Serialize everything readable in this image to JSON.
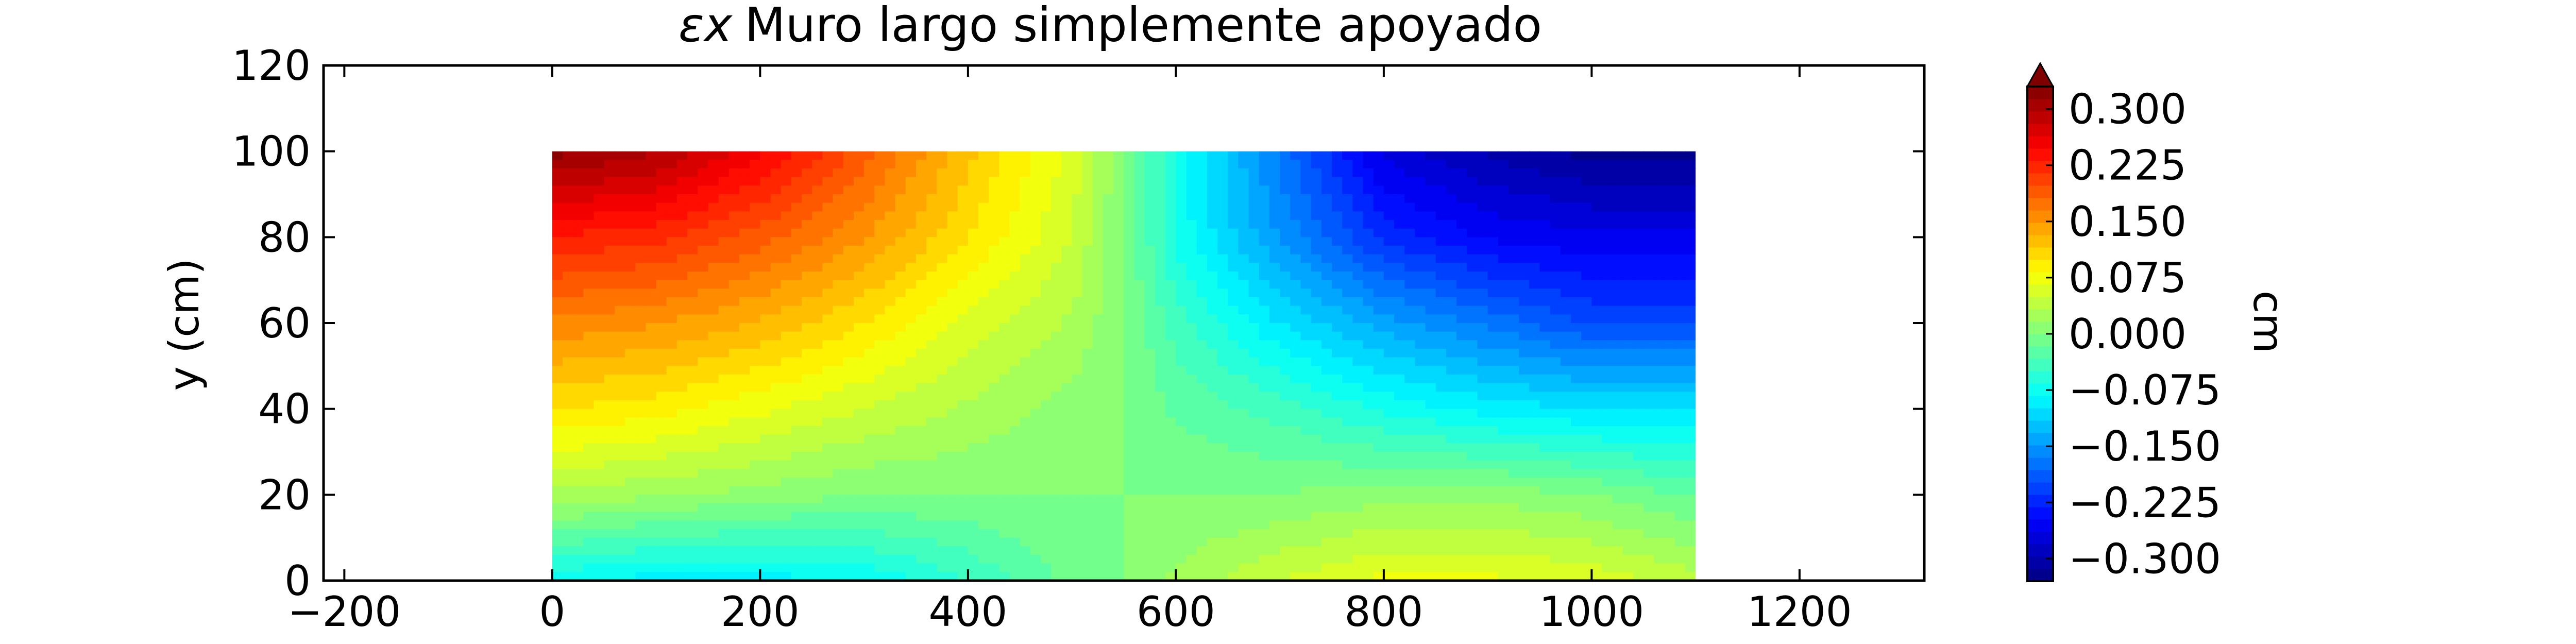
{
  "chart_data": {
    "type": "heatmap",
    "title_symbol": "εx",
    "title_text": "Muro largo simplemente apoyado",
    "xlabel": "",
    "ylabel": "y (cm)",
    "xlim": [
      -220,
      1320
    ],
    "ylim": [
      0,
      120
    ],
    "x_ticks": [
      "−200",
      "0",
      "200",
      "400",
      "600",
      "800",
      "1000",
      "1200"
    ],
    "x_tick_values": [
      -200,
      0,
      200,
      400,
      600,
      800,
      1000,
      1200
    ],
    "y_ticks": [
      "0",
      "20",
      "40",
      "60",
      "80",
      "100",
      "120"
    ],
    "y_tick_values": [
      0,
      20,
      40,
      60,
      80,
      100,
      120
    ],
    "colorbar": {
      "label": "cm",
      "range": [
        -0.33,
        0.33
      ],
      "ticks": [
        "0.300",
        "0.225",
        "0.150",
        "0.075",
        "0.000",
        "−0.075",
        "−0.150",
        "−0.225",
        "−0.300"
      ],
      "tick_values": [
        0.3,
        0.225,
        0.15,
        0.075,
        0.0,
        -0.075,
        -0.15,
        -0.225,
        -0.3
      ],
      "extend": "max",
      "colormap": "jet"
    },
    "domain": {
      "x": [
        0,
        1100
      ],
      "y": [
        0,
        100
      ]
    },
    "grid": false,
    "legend": "none",
    "field_samples": {
      "x": [
        0,
        100,
        200,
        300,
        400,
        500,
        550,
        600,
        700,
        800,
        900,
        1000,
        1100
      ],
      "y": [
        0,
        20,
        40,
        60,
        80,
        100
      ],
      "values": [
        [
          -0.08,
          -0.09,
          -0.09,
          -0.08,
          -0.05,
          -0.01,
          0.0,
          0.02,
          0.05,
          0.07,
          0.07,
          0.06,
          0.04
        ],
        [
          0.03,
          0.02,
          0.01,
          0.0,
          0.0,
          0.0,
          0.0,
          0.0,
          0.0,
          0.01,
          0.01,
          0.0,
          -0.02
        ],
        [
          0.1,
          0.09,
          0.07,
          0.05,
          0.03,
          0.01,
          0.0,
          -0.02,
          -0.04,
          -0.07,
          -0.09,
          -0.1,
          -0.1
        ],
        [
          0.16,
          0.15,
          0.13,
          0.1,
          0.06,
          0.03,
          0.0,
          -0.04,
          -0.1,
          -0.14,
          -0.17,
          -0.2,
          -0.2
        ],
        [
          0.23,
          0.22,
          0.19,
          0.15,
          0.1,
          0.05,
          0.0,
          -0.07,
          -0.15,
          -0.22,
          -0.25,
          -0.26,
          -0.26
        ],
        [
          0.32,
          0.3,
          0.25,
          0.19,
          0.12,
          0.06,
          0.0,
          -0.07,
          -0.17,
          -0.27,
          -0.3,
          -0.32,
          -0.32
        ]
      ]
    }
  }
}
